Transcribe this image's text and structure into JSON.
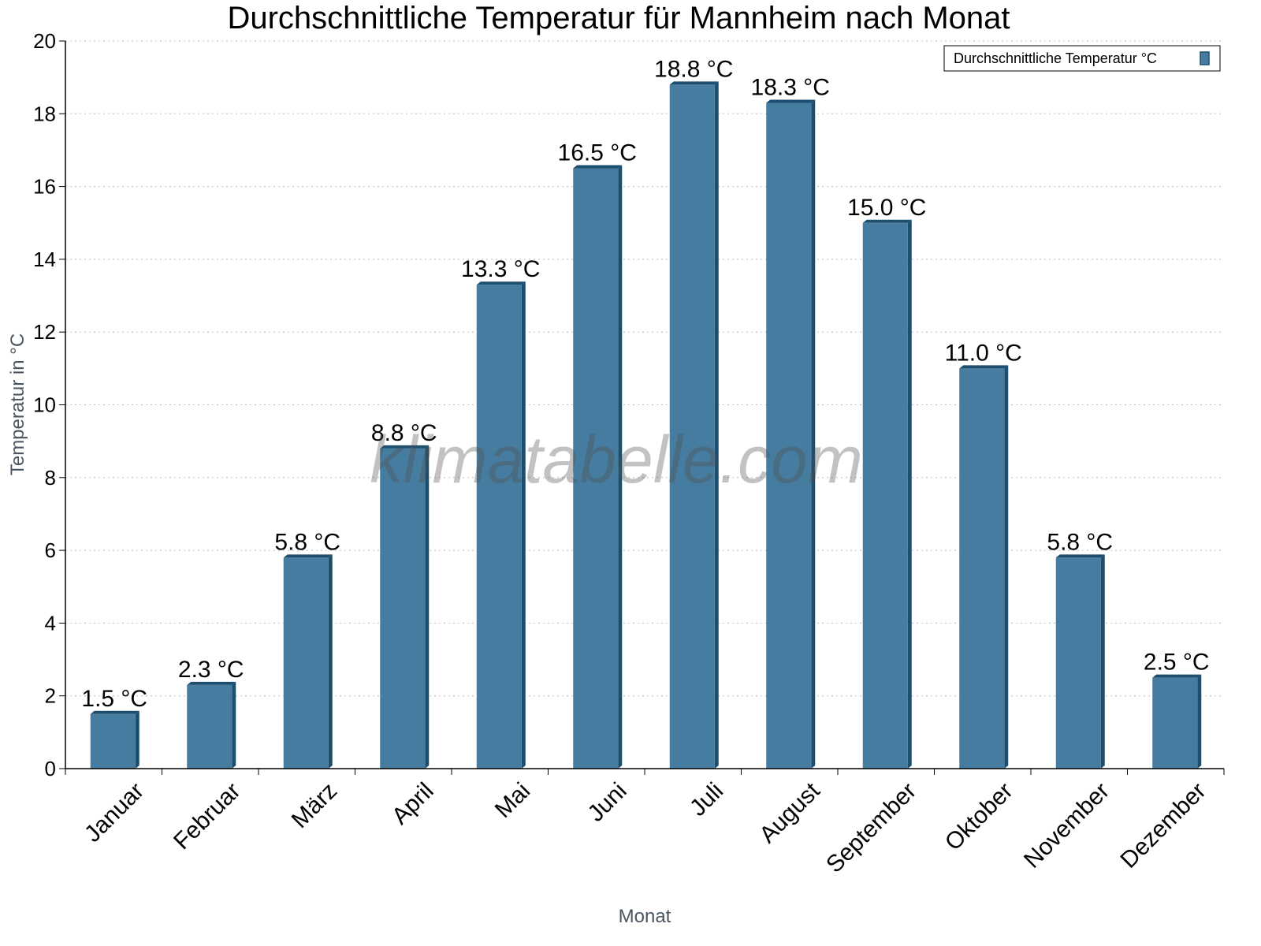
{
  "chart_data": {
    "type": "bar",
    "title": "Durchschnittliche Temperatur für Mannheim nach Monat",
    "xlabel": "Monat",
    "ylabel": "Temperatur in °C",
    "categories": [
      "Januar",
      "Februar",
      "März",
      "April",
      "Mai",
      "Juni",
      "Juli",
      "August",
      "September",
      "Oktober",
      "November",
      "Dezember"
    ],
    "series": [
      {
        "name": "Durchschnittliche Temperatur °C",
        "values": [
          1.5,
          2.3,
          5.8,
          8.8,
          13.3,
          16.5,
          18.8,
          18.3,
          15.0,
          11.0,
          5.8,
          2.5
        ],
        "labels": [
          "1.5 °C",
          "2.3 °C",
          "5.8 °C",
          "8.8 °C",
          "13.3 °C",
          "16.5 °C",
          "18.8 °C",
          "18.3 °C",
          "15.0 °C",
          "11.0 °C",
          "5.8 °C",
          "2.5 °C"
        ]
      }
    ],
    "ylim": [
      0,
      20
    ],
    "yticks": [
      0,
      2,
      4,
      6,
      8,
      10,
      12,
      14,
      16,
      18,
      20
    ],
    "grid": true,
    "legend_position": "top-right",
    "colors": {
      "bar": "#467c9f",
      "bar_edge": "#1d4e6e"
    },
    "watermark": "klimatabelle.com"
  }
}
